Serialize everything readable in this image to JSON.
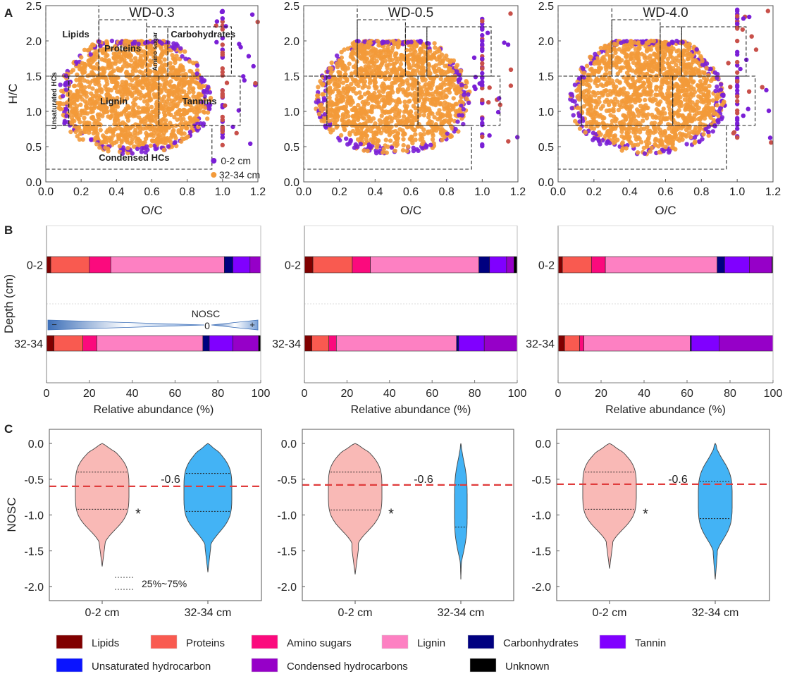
{
  "panel_labels": {
    "a": "A",
    "b": "B",
    "c": "C"
  },
  "colors": {
    "lipids": "#800000",
    "proteins": "#f95a50",
    "amino_sugars": "#fb0a7d",
    "lignin": "#fd80c2",
    "carbohydrates": "#000080",
    "tannin": "#8000ff",
    "unsaturated": "#0a14ff",
    "condensed": "#9600c8",
    "unknown": "#000000",
    "scatter_0_2": "#7a1fd6",
    "scatter_32_34": "#f39a3a",
    "violin_0_2": "#f9b9b6",
    "violin_32_34": "#43b3f5",
    "mean_line": "#e03c3c"
  },
  "legend": [
    {
      "key": "lipids",
      "label": "Lipids"
    },
    {
      "key": "proteins",
      "label": "Proteins"
    },
    {
      "key": "amino_sugars",
      "label": "Amino sugars"
    },
    {
      "key": "lignin",
      "label": "Lignin"
    },
    {
      "key": "carbohydrates",
      "label": "Carbonhydrates"
    },
    {
      "key": "tannin",
      "label": "Tannin"
    },
    {
      "key": "unsaturated",
      "label": "Unsaturated hydrocarbon"
    },
    {
      "key": "condensed",
      "label": "Condensed hydrocarbons"
    },
    {
      "key": "unknown",
      "label": "Unknown"
    }
  ],
  "chart_data": [
    {
      "panel": "A",
      "type": "scatter",
      "titles": [
        "WD-0.3",
        "WD-0.5",
        "WD-4.0"
      ],
      "xlabel": "O/C",
      "ylabel": "H/C",
      "xlim": [
        0,
        1.2
      ],
      "ylim": [
        0,
        2.5
      ],
      "xticks": [
        "0.0",
        "0.2",
        "0.4",
        "0.6",
        "0.8",
        "1.0",
        "1.2"
      ],
      "yticks": [
        "0.0",
        "0.5",
        "1.0",
        "1.5",
        "2.0",
        "2.5"
      ],
      "series": [
        {
          "name": "0-2 cm"
        },
        {
          "name": "32-34 cm"
        }
      ],
      "legend_position": "bottom-right (first panel only)",
      "regions": [
        {
          "label": "Lipids",
          "oc": [
            0,
            0.3
          ],
          "hc": [
            1.5,
            2.5
          ]
        },
        {
          "label": "Proteins",
          "oc": [
            0.3,
            0.57
          ],
          "hc": [
            1.5,
            2.3
          ]
        },
        {
          "label": "Amino sugar",
          "oc": [
            0.57,
            0.69
          ],
          "hc": [
            1.5,
            2.2
          ]
        },
        {
          "label": "Carbohydrates",
          "oc": [
            0.69,
            1.05
          ],
          "hc": [
            1.5,
            2.2
          ]
        },
        {
          "label": "Unsaturated HCs",
          "oc": [
            0,
            0.13
          ],
          "hc": [
            0.8,
            1.5
          ]
        },
        {
          "label": "Lignin",
          "oc": [
            0.13,
            0.64
          ],
          "hc": [
            0.8,
            1.5
          ]
        },
        {
          "label": "Tannins",
          "oc": [
            0.64,
            1.1
          ],
          "hc": [
            0.8,
            1.5
          ]
        },
        {
          "label": "Condensed HCs",
          "oc": [
            0,
            0.94
          ],
          "hc": [
            0.18,
            0.8
          ]
        }
      ]
    },
    {
      "panel": "B",
      "type": "bar",
      "stacked": true,
      "orientation": "horizontal",
      "xlabel": "Relative abundance (%)",
      "ylabel": "Depth (cm)",
      "xlim": [
        0,
        100
      ],
      "xticks": [
        "0",
        "20",
        "40",
        "60",
        "80",
        "100"
      ],
      "categories": [
        "0-2",
        "32-34"
      ],
      "series_order": [
        "lipids",
        "proteins",
        "amino_sugars",
        "lignin",
        "carbohydrates",
        "tannin",
        "condensed",
        "unknown"
      ],
      "sites": [
        {
          "site": "WD-0.3",
          "values": {
            "0-2": [
              2,
              18,
              10,
              53,
              4,
              8,
              5,
              0
            ],
            "32-34": [
              3.5,
              13.5,
              6.5,
              49.5,
              3,
              11,
              12,
              1
            ]
          }
        },
        {
          "site": "WD-0.5",
          "values": {
            "0-2": [
              4,
              18.5,
              8.5,
              51,
              5,
              8,
              3.5,
              1.5
            ],
            "32-34": [
              3.5,
              8,
              3.5,
              56.5,
              1,
              12,
              15.5,
              0
            ]
          }
        },
        {
          "site": "WD-4.0",
          "values": {
            "0-2": [
              2,
              13.5,
              6.5,
              52,
              3.5,
              11.5,
              10.5,
              0.5
            ],
            "32-34": [
              3,
              7,
              2,
              49.5,
              0.5,
              13,
              25,
              0
            ]
          }
        }
      ],
      "nosc_scale": {
        "label": "NOSC",
        "zero": "0",
        "minus": "−",
        "plus": "+"
      }
    },
    {
      "panel": "C",
      "type": "violin",
      "ylabel": "NOSC",
      "ylim": [
        -2.2,
        0.2
      ],
      "yticks": [
        "0.0",
        "-0.5",
        "-1.0",
        "-1.5",
        "-2.0"
      ],
      "categories": [
        "0-2 cm",
        "32-34 cm"
      ],
      "quartile_legend": "25%~75%",
      "mean_label": "-0.6",
      "significance": "*",
      "sites": [
        {
          "site": "WD-0.3",
          "reference_line": -0.6,
          "violins": [
            {
              "min": -1.72,
              "max": 0,
              "q25": -0.92,
              "q75": -0.4
            },
            {
              "min": -1.8,
              "max": 0,
              "q25": -0.95,
              "q75": -0.42
            }
          ]
        },
        {
          "site": "WD-0.5",
          "reference_line": -0.58,
          "violins": [
            {
              "min": -1.83,
              "max": 0,
              "q25": -0.93,
              "q75": -0.4
            },
            {
              "min": -1.9,
              "max": 0,
              "q25": -1.17,
              "q75": -0.58
            }
          ]
        },
        {
          "site": "WD-4.0",
          "reference_line": -0.57,
          "violins": [
            {
              "min": -1.75,
              "max": 0,
              "q25": -0.92,
              "q75": -0.4
            },
            {
              "min": -1.9,
              "max": 0,
              "q25": -1.05,
              "q75": -0.53
            }
          ]
        }
      ]
    }
  ]
}
